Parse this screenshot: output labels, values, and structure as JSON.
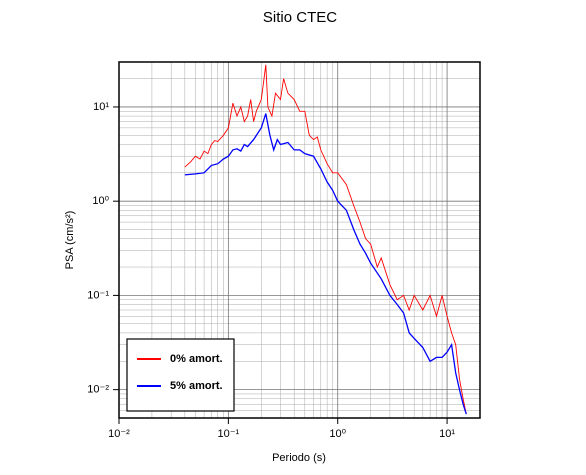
{
  "chart_data": {
    "type": "line",
    "title": "Sitio CTEC",
    "xlabel": "Periodo (s)",
    "ylabel": "PSA (cm/s²)",
    "xscale": "log",
    "yscale": "log",
    "grid": true,
    "minor_grid": true,
    "legend": "lower left",
    "xlim": [
      0.01,
      20
    ],
    "ylim": [
      0.005,
      30
    ],
    "xticks": [
      {
        "value": 0.01,
        "label": "10⁻²"
      },
      {
        "value": 0.1,
        "label": "10⁻¹"
      },
      {
        "value": 1,
        "label": "10⁰"
      },
      {
        "value": 10,
        "label": "10¹"
      }
    ],
    "yticks": [
      {
        "value": 0.01,
        "label": "10⁻²"
      },
      {
        "value": 0.1,
        "label": "10⁻¹"
      },
      {
        "value": 1,
        "label": "10⁰"
      },
      {
        "value": 10,
        "label": "10¹"
      }
    ],
    "series": [
      {
        "name": "0% amort.",
        "color": "#ff0000",
        "x": [
          0.04,
          0.045,
          0.05,
          0.055,
          0.06,
          0.065,
          0.07,
          0.075,
          0.08,
          0.09,
          0.1,
          0.11,
          0.12,
          0.13,
          0.14,
          0.15,
          0.16,
          0.17,
          0.18,
          0.2,
          0.22,
          0.23,
          0.25,
          0.27,
          0.3,
          0.32,
          0.35,
          0.4,
          0.45,
          0.5,
          0.55,
          0.6,
          0.65,
          0.7,
          0.8,
          0.9,
          1.0,
          1.2,
          1.4,
          1.6,
          1.8,
          2.0,
          2.3,
          2.5,
          3.0,
          3.5,
          4.0,
          4.5,
          5,
          6,
          7,
          8,
          9,
          10,
          11,
          12,
          13,
          14,
          15
        ],
        "values": [
          2.3,
          2.6,
          3.0,
          2.8,
          3.4,
          3.2,
          4.0,
          4.4,
          4.3,
          5.0,
          6.0,
          11,
          8,
          10,
          7,
          8,
          12,
          7,
          9,
          12,
          28,
          10,
          8,
          14,
          12,
          20,
          14,
          12,
          9,
          9,
          5,
          4.5,
          4.8,
          3.5,
          2.5,
          2.0,
          2.0,
          1.5,
          0.9,
          0.6,
          0.4,
          0.35,
          0.2,
          0.25,
          0.13,
          0.09,
          0.1,
          0.07,
          0.1,
          0.07,
          0.1,
          0.06,
          0.1,
          0.06,
          0.04,
          0.03,
          0.013,
          0.008,
          0.0055
        ]
      },
      {
        "name": "5% amort.",
        "color": "#0000ff",
        "x": [
          0.04,
          0.05,
          0.06,
          0.07,
          0.08,
          0.09,
          0.1,
          0.11,
          0.12,
          0.13,
          0.14,
          0.15,
          0.17,
          0.2,
          0.22,
          0.24,
          0.26,
          0.28,
          0.3,
          0.35,
          0.4,
          0.45,
          0.5,
          0.6,
          0.7,
          0.8,
          0.9,
          1.0,
          1.2,
          1.4,
          1.6,
          1.8,
          2.0,
          2.5,
          3.0,
          3.5,
          4.0,
          4.5,
          5,
          6,
          7,
          8,
          9,
          10,
          11,
          12,
          13,
          14,
          15
        ],
        "values": [
          1.9,
          1.95,
          2.0,
          2.4,
          2.5,
          2.8,
          3.0,
          3.5,
          3.6,
          3.4,
          4.0,
          3.8,
          4.5,
          6.0,
          8.5,
          5.0,
          3.5,
          4.5,
          4.0,
          4.2,
          3.5,
          3.5,
          3.2,
          3.0,
          2.2,
          1.6,
          1.3,
          1.0,
          0.8,
          0.5,
          0.35,
          0.28,
          0.22,
          0.15,
          0.1,
          0.08,
          0.065,
          0.04,
          0.035,
          0.028,
          0.02,
          0.022,
          0.022,
          0.025,
          0.03,
          0.015,
          0.01,
          0.007,
          0.0055
        ]
      }
    ]
  }
}
